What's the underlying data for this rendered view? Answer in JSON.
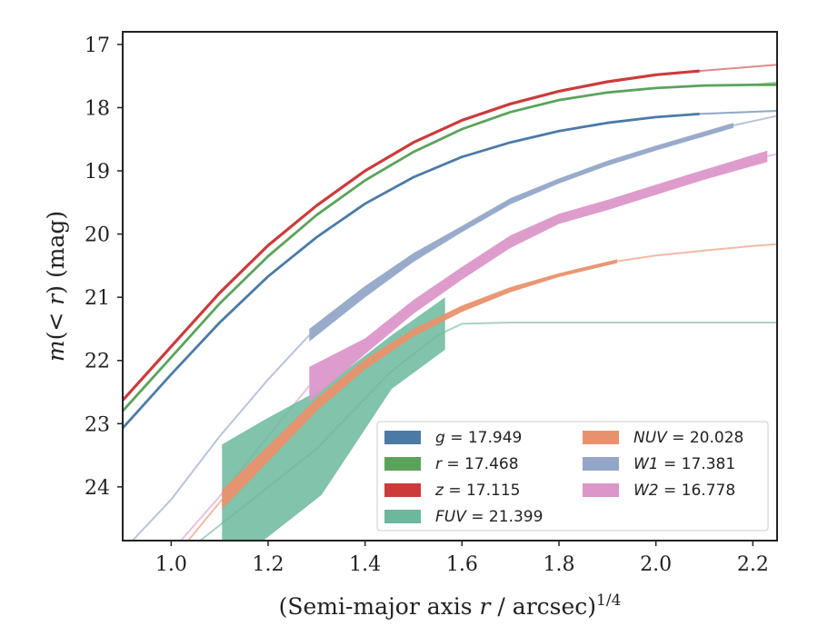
{
  "chart_data": {
    "type": "line",
    "xlabel": "(Semi-major axis r / arcsec)^1/4",
    "ylabel": "m(<r) (mag)",
    "xlim": [
      0.9,
      2.25
    ],
    "ylim": [
      24.85,
      16.8
    ],
    "y_inverted": true,
    "grid": false,
    "legend_placement": "lower-right",
    "x_ticks": [
      1.0,
      1.2,
      1.4,
      1.6,
      1.8,
      2.0,
      2.2
    ],
    "x_tick_labels": [
      "1.0",
      "1.2",
      "1.4",
      "1.6",
      "1.8",
      "2.0",
      "2.2"
    ],
    "y_ticks": [
      17,
      18,
      19,
      20,
      21,
      22,
      23,
      24
    ],
    "y_tick_labels": [
      "17",
      "18",
      "19",
      "20",
      "21",
      "22",
      "23",
      "24"
    ],
    "series": [
      {
        "id": "g",
        "name": "g = 17.949",
        "color": "#4c7aa6",
        "width": 2.8,
        "x": [
          0.9,
          1.0,
          1.1,
          1.2,
          1.3,
          1.4,
          1.5,
          1.6,
          1.7,
          1.8,
          1.9,
          2.0,
          2.09
        ],
        "y": [
          23.07,
          22.22,
          21.4,
          20.67,
          20.05,
          19.52,
          19.1,
          18.78,
          18.55,
          18.37,
          18.24,
          18.15,
          18.1
        ],
        "extension": {
          "x": [
            2.09,
            2.25
          ],
          "y": [
            18.1,
            18.05
          ],
          "color": "#8ea9c4"
        }
      },
      {
        "id": "r",
        "name": "r = 17.468",
        "color": "#5ba35b",
        "width": 2.8,
        "x": [
          0.9,
          1.0,
          1.1,
          1.2,
          1.3,
          1.4,
          1.5,
          1.6,
          1.7,
          1.8,
          1.9,
          2.0,
          2.1,
          2.2,
          2.25
        ],
        "y": [
          22.8,
          21.95,
          21.1,
          20.35,
          19.7,
          19.15,
          18.7,
          18.34,
          18.07,
          17.88,
          17.76,
          17.69,
          17.65,
          17.64,
          17.64
        ],
        "extension": {
          "x": [
            2.2,
            2.25
          ],
          "y": [
            17.64,
            17.6
          ],
          "color": "#9dcc9d"
        }
      },
      {
        "id": "z",
        "name": "z = 17.115",
        "color": "#cc3b3b",
        "width": 3.2,
        "x": [
          0.9,
          1.0,
          1.1,
          1.2,
          1.3,
          1.4,
          1.5,
          1.6,
          1.7,
          1.8,
          1.9,
          2.0,
          2.09
        ],
        "y": [
          22.63,
          21.78,
          20.93,
          20.18,
          19.55,
          19.0,
          18.55,
          18.2,
          17.94,
          17.74,
          17.59,
          17.48,
          17.42
        ],
        "extension": {
          "x": [
            2.09,
            2.25
          ],
          "y": [
            17.42,
            17.32
          ],
          "color": "#dd8a8a"
        }
      },
      {
        "id": "fuv",
        "name": "FUV = 21.399",
        "color": "#6bb89c",
        "type": "band",
        "x": [
          1.105,
          1.19,
          1.31,
          1.455,
          1.565
        ],
        "y_upper": [
          23.33,
          22.95,
          22.45,
          21.6,
          21.0
        ],
        "y_lower": [
          24.85,
          24.85,
          24.13,
          22.45,
          21.83
        ],
        "extension": {
          "x": [
            1.06,
            1.3,
            1.45,
            1.55,
            1.6,
            1.7,
            1.8,
            1.9,
            2.0,
            2.1,
            2.25
          ],
          "y": [
            24.85,
            23.4,
            22.2,
            21.6,
            21.42,
            21.4,
            21.4,
            21.4,
            21.4,
            21.4,
            21.4
          ],
          "color": "#a6d3c2"
        }
      },
      {
        "id": "nuv",
        "name": "NUV = 20.028",
        "color": "#e9916c",
        "type": "band",
        "x": [
          1.105,
          1.2,
          1.3,
          1.4,
          1.5,
          1.6,
          1.7,
          1.8,
          1.92
        ],
        "y_upper": [
          24.05,
          23.35,
          22.6,
          21.98,
          21.5,
          21.13,
          20.84,
          20.62,
          20.4
        ],
        "y_lower": [
          24.35,
          23.6,
          22.8,
          22.14,
          21.62,
          21.23,
          20.92,
          20.68,
          20.46
        ],
        "extension": {
          "x": [
            1.92,
            2.0,
            2.1,
            2.2,
            2.25
          ],
          "y": [
            20.43,
            20.34,
            20.26,
            20.19,
            20.16
          ],
          "ext_left_x": [
            1.035,
            1.105
          ],
          "ext_left_y": [
            24.85,
            24.2
          ],
          "color": "#f2bba4"
        }
      },
      {
        "id": "w1",
        "name": "W1 = 17.381",
        "color": "#94a6c8",
        "type": "band",
        "x": [
          1.285,
          1.4,
          1.5,
          1.6,
          1.7,
          1.8,
          1.9,
          2.0,
          2.16
        ],
        "y_upper": [
          21.5,
          20.82,
          20.3,
          19.87,
          19.43,
          19.12,
          18.84,
          18.6,
          18.24
        ],
        "y_lower": [
          21.7,
          21.0,
          20.44,
          19.97,
          19.53,
          19.2,
          18.92,
          18.68,
          18.32
        ],
        "extension": {
          "x": [
            2.16,
            2.25
          ],
          "y": [
            18.28,
            18.13
          ],
          "ext_left_x": [
            0.92,
            1.0,
            1.1,
            1.2,
            1.285
          ],
          "ext_left_y": [
            24.85,
            24.2,
            23.2,
            22.3,
            21.6
          ],
          "color": "#b9c4da"
        }
      },
      {
        "id": "w2",
        "name": "W2 = 16.778",
        "color": "#dc97c9",
        "type": "band",
        "x": [
          1.285,
          1.4,
          1.5,
          1.6,
          1.7,
          1.8,
          1.9,
          2.0,
          2.1,
          2.23
        ],
        "y_upper": [
          22.1,
          21.65,
          21.04,
          20.52,
          20.02,
          19.68,
          19.46,
          19.22,
          18.98,
          18.68
        ],
        "y_lower": [
          22.65,
          21.9,
          21.26,
          20.72,
          20.22,
          19.84,
          19.62,
          19.38,
          19.14,
          18.86
        ],
        "extension": {
          "x": [
            2.23,
            2.25
          ],
          "y": [
            18.77,
            18.73
          ],
          "ext_left_x": [
            1.02,
            1.1,
            1.2,
            1.285
          ],
          "ext_left_y": [
            24.85,
            24.15,
            23.2,
            22.4
          ],
          "color": "#ebc1e0"
        }
      }
    ],
    "legend": {
      "columns": [
        [
          {
            "series": "g",
            "label": "g = 17.949"
          },
          {
            "series": "r",
            "label": "r = 17.468"
          },
          {
            "series": "z",
            "label": "z = 17.115"
          },
          {
            "series": "fuv",
            "label": "FUV = 21.399"
          }
        ],
        [
          {
            "series": "nuv",
            "label": "NUV = 20.028"
          },
          {
            "series": "w1",
            "label": "W1 = 17.381"
          },
          {
            "series": "w2",
            "label": "W2 = 16.778"
          }
        ]
      ]
    }
  }
}
